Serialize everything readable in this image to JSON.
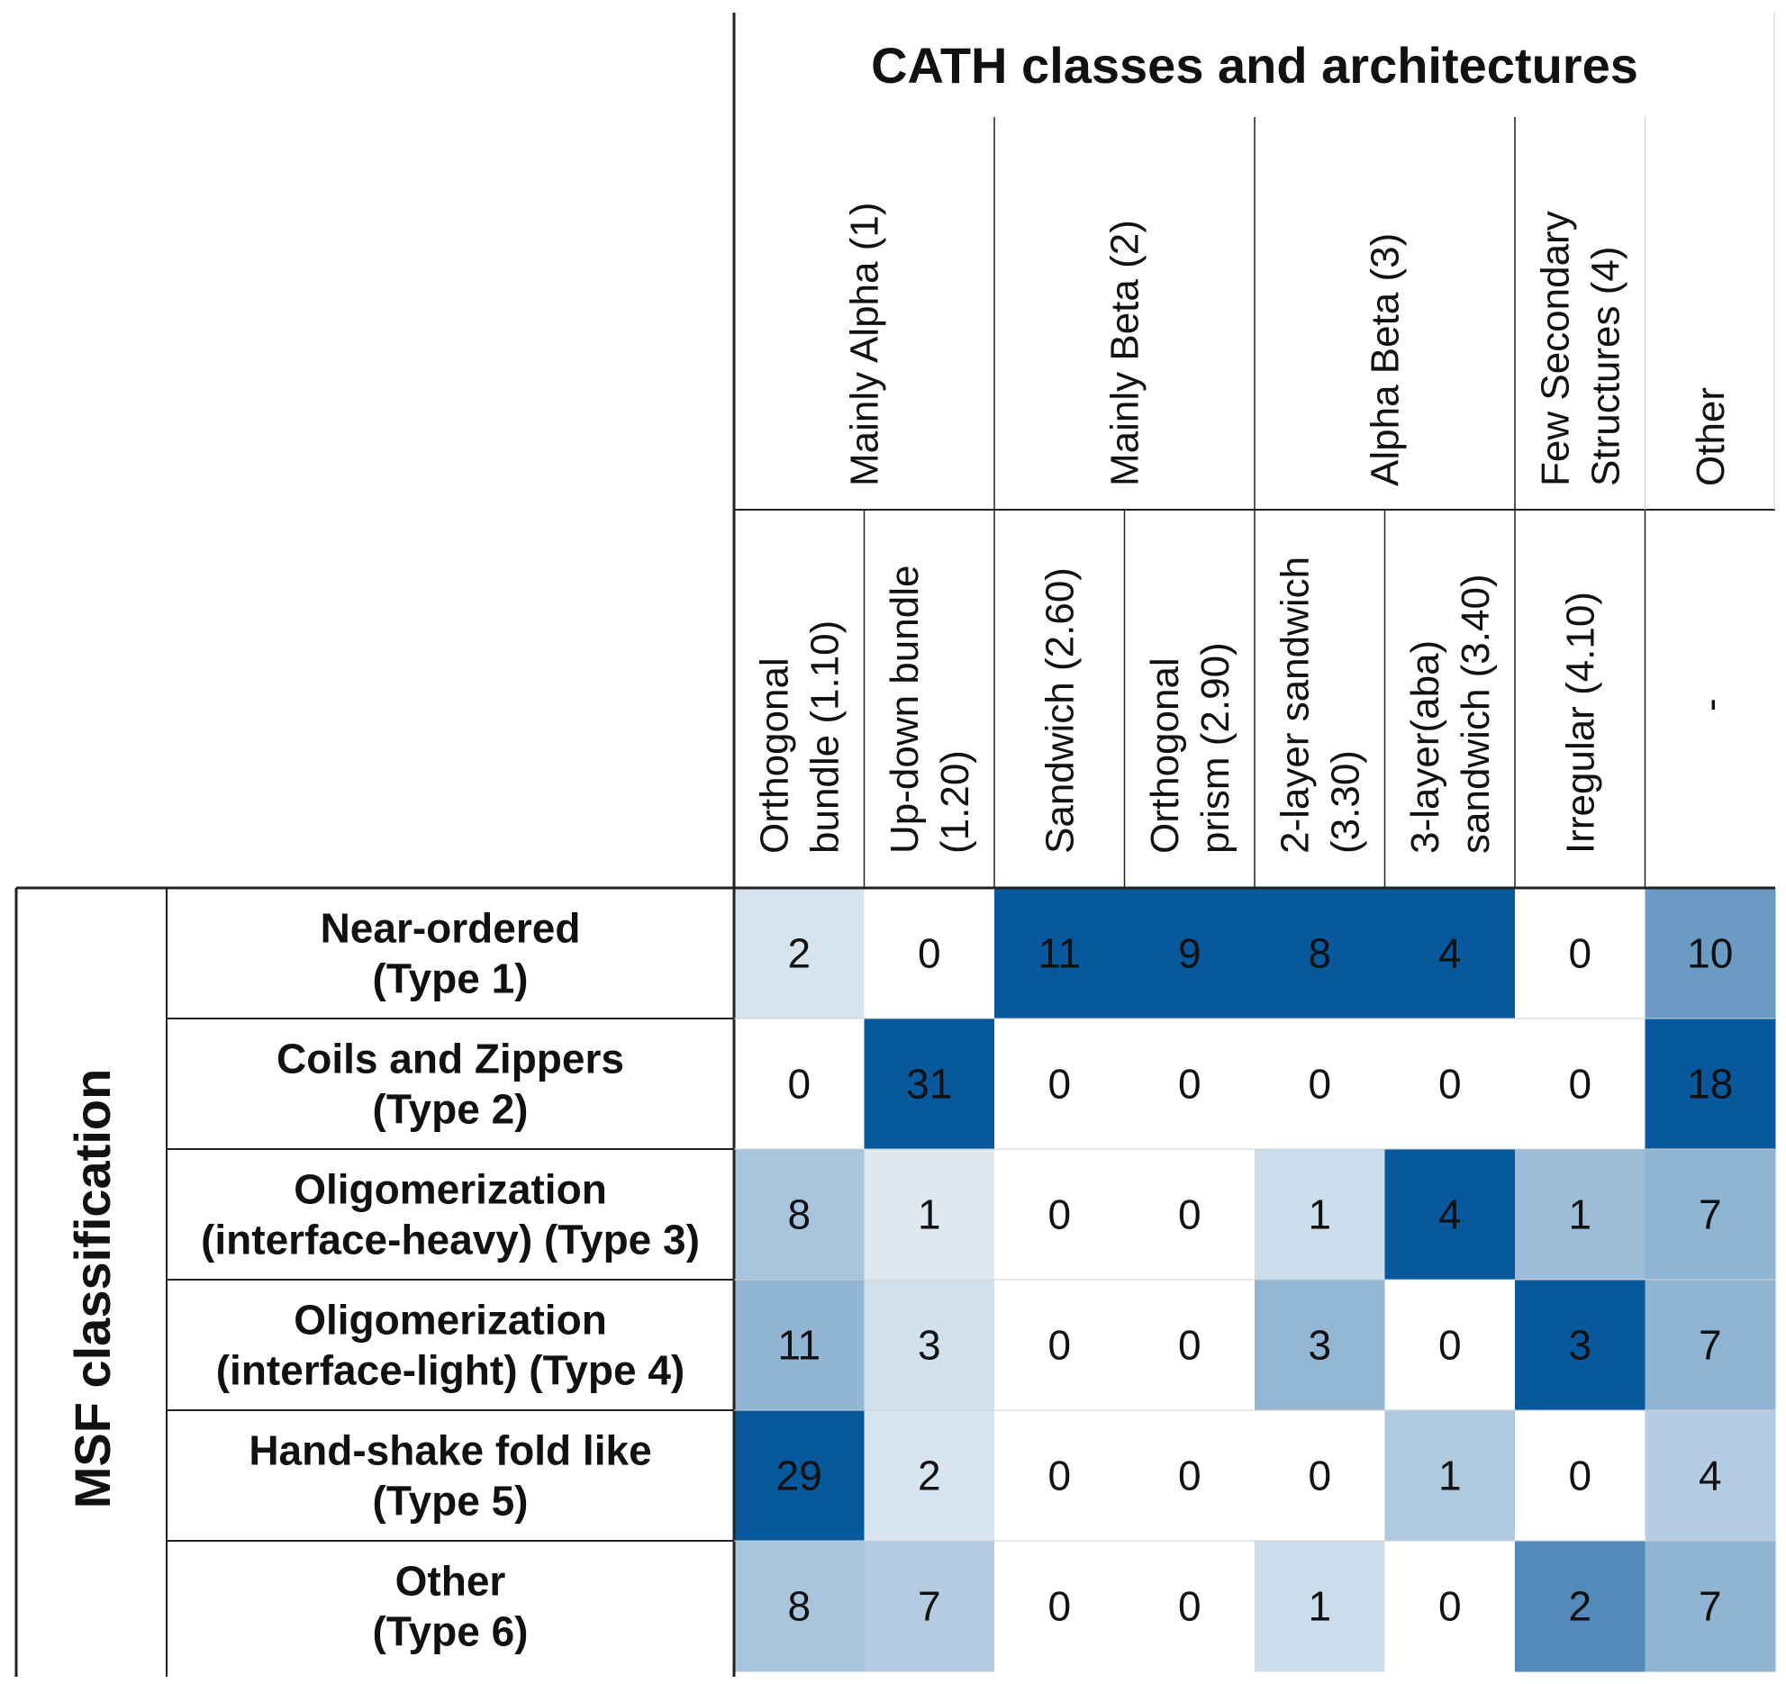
{
  "chart_data": {
    "type": "heatmap",
    "title": "CATH classes and architectures",
    "ylabel": "MSF classification",
    "classes": [
      {
        "label": "Mainly Alpha (1)",
        "span": 2
      },
      {
        "label": "Mainly Beta (2)",
        "span": 2
      },
      {
        "label": "Alpha Beta (3)",
        "span": 2
      },
      {
        "label": "Few Secondary Structures (4)",
        "span": 1
      },
      {
        "label": "Other",
        "span": 1
      }
    ],
    "class_label_lines": [
      [
        "Mainly Alpha (1)"
      ],
      [
        "Mainly Beta (2)"
      ],
      [
        "Alpha Beta (3)"
      ],
      [
        "Few Secondary",
        "Structures (4)"
      ],
      [
        "Other"
      ]
    ],
    "columns": [
      "Orthogonal bundle (1.10)",
      "Up-down bundle (1.20)",
      "Sandwich (2.60)",
      "Orthogonal prism (2.90)",
      "2-layer sandwich (3.30)",
      "3-layer(aba) sandwich (3.40)",
      "Irregular (4.10)",
      "-"
    ],
    "column_label_lines": [
      [
        "Orthogonal",
        "bundle (1.10)"
      ],
      [
        "Up-down bundle",
        "(1.20)"
      ],
      [
        "Sandwich (2.60)"
      ],
      [
        "Orthogonal",
        "prism (2.90)"
      ],
      [
        "2-layer sandwich",
        "(3.30)"
      ],
      [
        "3-layer(aba)",
        "sandwich (3.40)"
      ],
      [
        "Irregular (4.10)"
      ],
      [
        "-"
      ]
    ],
    "rows": [
      "Near-ordered (Type 1)",
      "Coils and Zippers (Type 2)",
      "Oligomerization (interface-heavy) (Type 3)",
      "Oligomerization (interface-light) (Type 4)",
      "Hand-shake fold like (Type 5)",
      "Other (Type 6)"
    ],
    "row_label_lines": [
      [
        "Near-ordered",
        "(Type 1)"
      ],
      [
        "Coils and Zippers",
        "(Type 2)"
      ],
      [
        "Oligomerization",
        "(interface-heavy) (Type 3)"
      ],
      [
        "Oligomerization",
        "(interface-light) (Type 4)"
      ],
      [
        "Hand-shake fold like",
        "(Type 5)"
      ],
      [
        "Other",
        "(Type 6)"
      ]
    ],
    "values": [
      [
        2,
        0,
        11,
        9,
        8,
        4,
        0,
        10
      ],
      [
        0,
        31,
        0,
        0,
        0,
        0,
        0,
        18
      ],
      [
        8,
        1,
        0,
        0,
        1,
        4,
        1,
        7
      ],
      [
        11,
        3,
        0,
        0,
        3,
        0,
        3,
        7
      ],
      [
        29,
        2,
        0,
        0,
        0,
        1,
        0,
        4
      ],
      [
        8,
        7,
        0,
        0,
        1,
        0,
        2,
        7
      ]
    ],
    "colormap": "blues",
    "color_scale": "per-column"
  },
  "colors": {
    "low": "#ffffff",
    "high": "#08589e",
    "line": "#222222",
    "faint_line": "#d0d0d0"
  }
}
